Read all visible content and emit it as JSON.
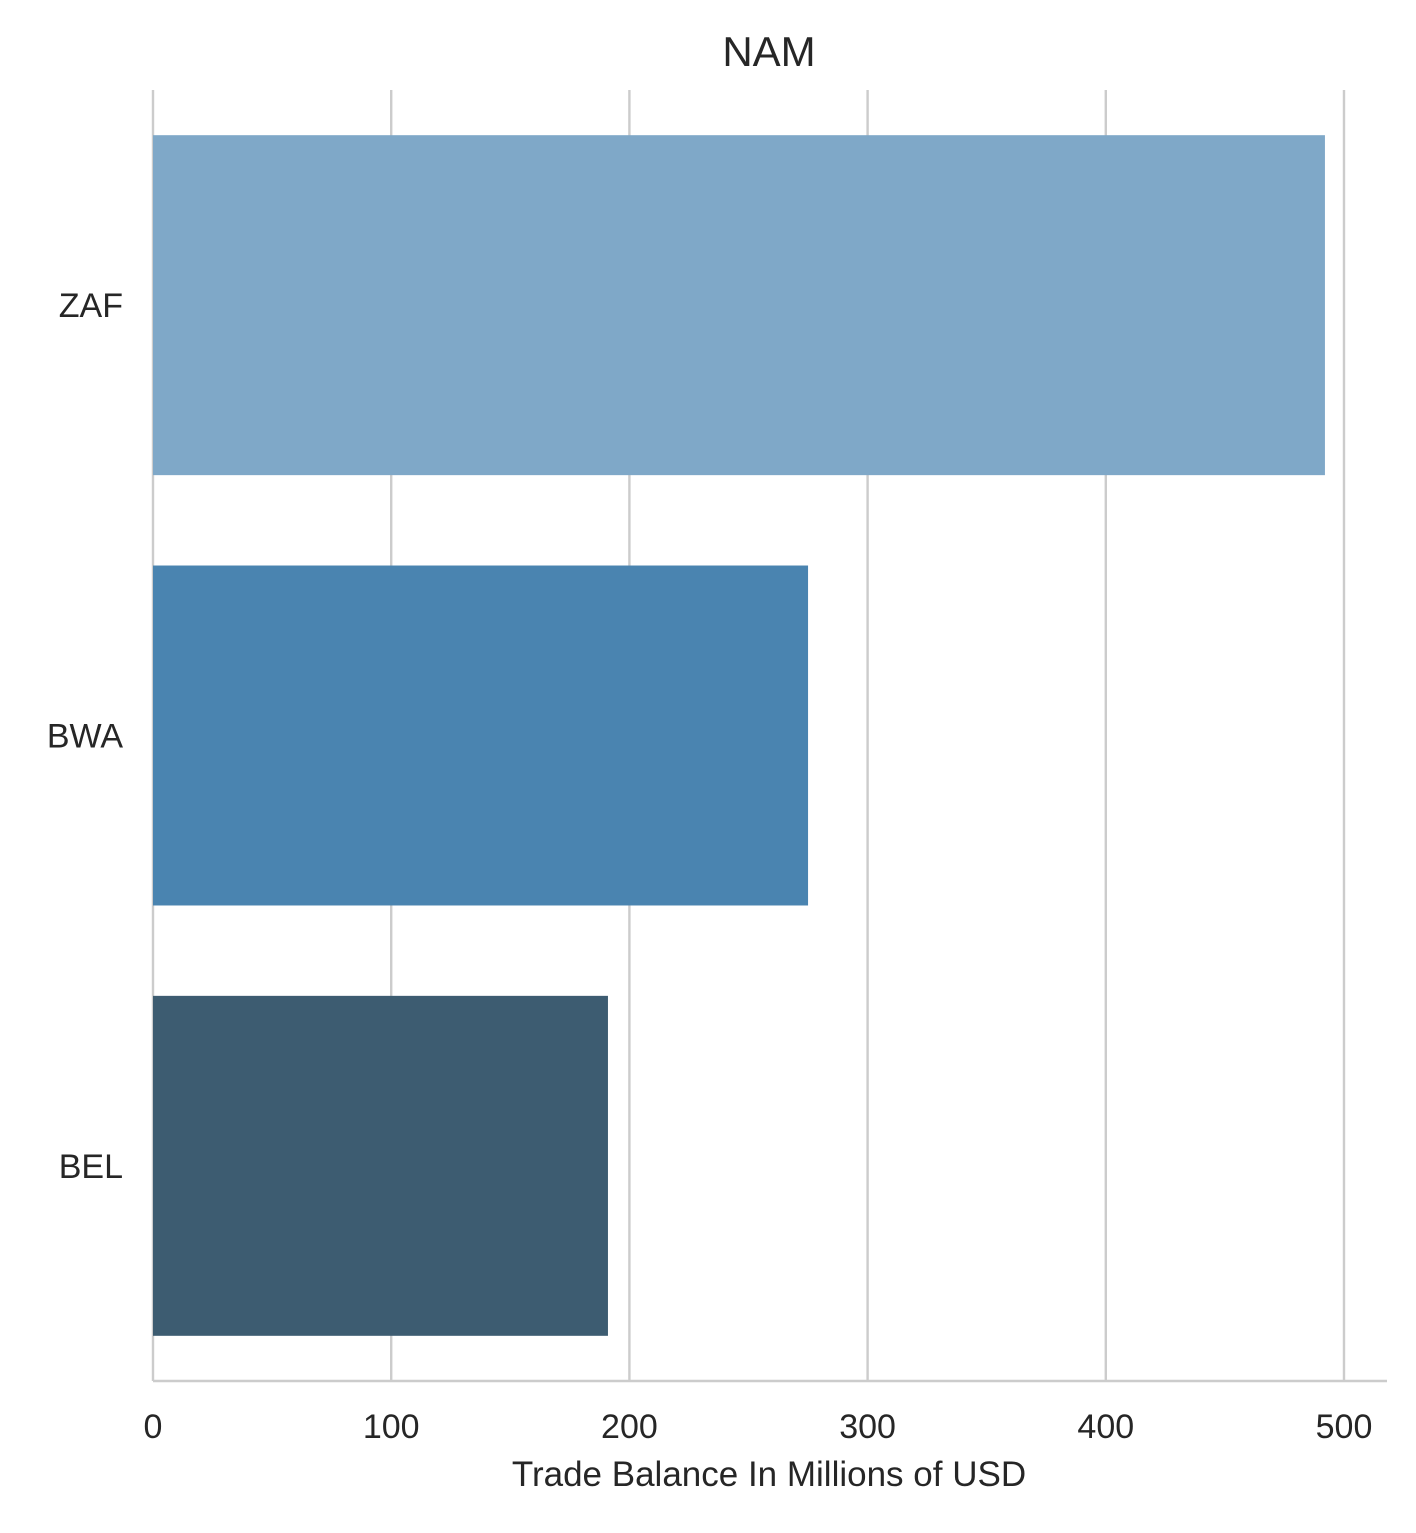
{
  "chart_data": {
    "type": "bar",
    "orientation": "horizontal",
    "title": "NAM",
    "xlabel": "Trade Balance In Millions of USD",
    "ylabel": "",
    "categories": [
      "ZAF",
      "BWA",
      "BEL"
    ],
    "values": [
      492,
      275,
      191
    ],
    "colors": [
      "#7fa8c8",
      "#4a84b0",
      "#3d5c71"
    ],
    "xlim": [
      0,
      520
    ],
    "xticks": [
      0,
      100,
      200,
      300,
      400,
      500
    ],
    "xtick_labels": [
      "0",
      "100",
      "200",
      "300",
      "400",
      "500"
    ],
    "grid": "vertical"
  }
}
